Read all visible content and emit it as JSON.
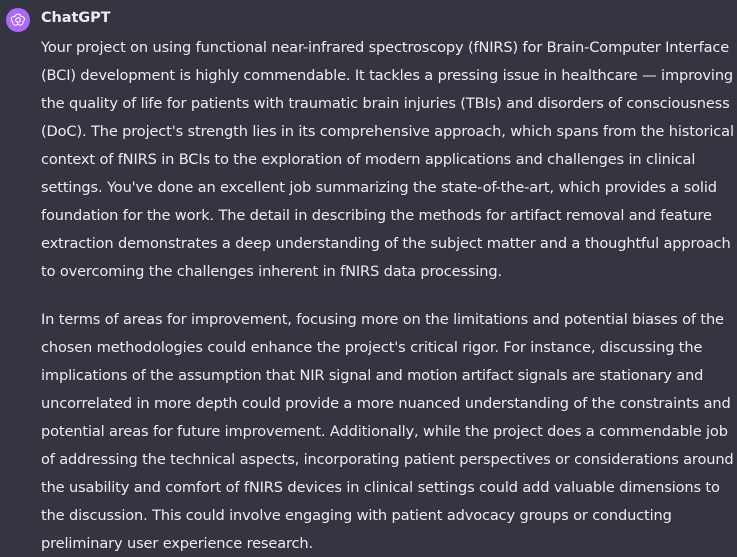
{
  "message": {
    "author": "ChatGPT",
    "avatar_icon": "openai-logo-icon",
    "avatar_color": "#ab68ff",
    "paragraphs": [
      "Your project on using functional near-infrared spectroscopy (fNIRS) for Brain-Computer Interface (BCI) development is highly commendable. It tackles a pressing issue in healthcare — improving the quality of life for patients with traumatic brain injuries (TBIs) and disorders of consciousness (DoC). The project's strength lies in its comprehensive approach, which spans from the historical context of fNIRS in BCIs to the exploration of modern applications and challenges in clinical settings. You've done an excellent job summarizing the state-of-the-art, which provides a solid foundation for the work. The detail in describing the methods for artifact removal and feature extraction demonstrates a deep understanding of the subject matter and a thoughtful approach to overcoming the challenges inherent in fNIRS data processing.",
      "In terms of areas for improvement, focusing more on the limitations and potential biases of the chosen methodologies could enhance the project's critical rigor. For instance, discussing the implications of the assumption that NIR signal and motion artifact signals are stationary and uncorrelated in more depth could provide a more nuanced understanding of the constraints and potential areas for future improvement. Additionally, while the project does a commendable job of addressing the technical aspects, incorporating patient perspectives or considerations around the usability and comfort of fNIRS devices in clinical settings could add valuable dimensions to the discussion. This could involve engaging with patient advocacy groups or conducting preliminary user experience research."
    ]
  },
  "theme": {
    "background": "#343541",
    "text": "#ececf1"
  }
}
